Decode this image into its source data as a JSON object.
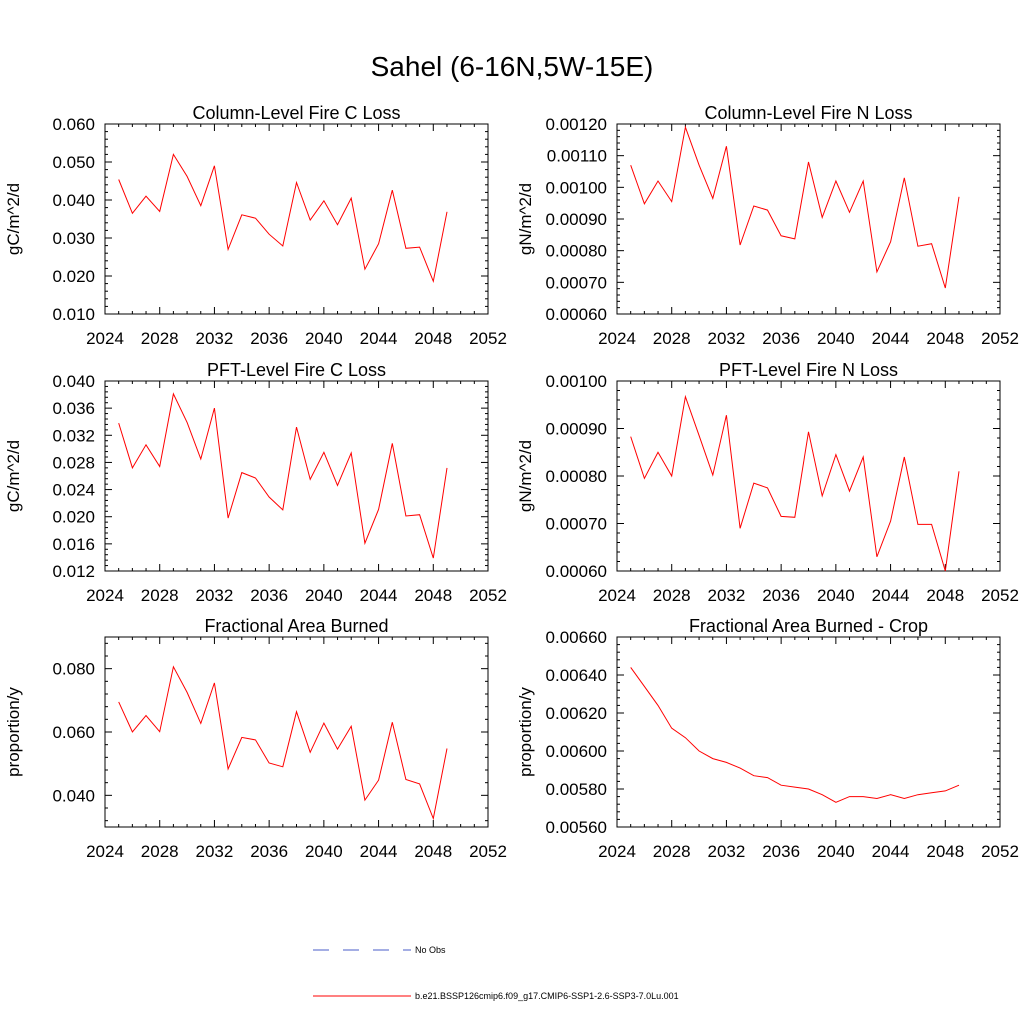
{
  "page": {
    "title": "Sahel (6-16N,5W-15E)"
  },
  "legend": {
    "obs_label": "No Obs",
    "model_label": "b.e21.BSSP126cmip6.f09_g17.CMIP6-SSP1-2.6-SSP3-7.0Lu.001",
    "model_color": "#ff0000",
    "obs_color": "#4a5cc8",
    "obs_dash": "dashed"
  },
  "chart_data": [
    {
      "type": "line",
      "title": "Column-Level Fire C Loss",
      "ylabel": "gC/m^2/d",
      "xlabel": "",
      "xlim": [
        2024,
        2052
      ],
      "ylim": [
        0.01,
        0.06
      ],
      "xticks": [
        "2024",
        "2028",
        "2032",
        "2036",
        "2040",
        "2044",
        "2048",
        "2052"
      ],
      "yticks": [
        "0.010",
        "0.020",
        "0.030",
        "0.040",
        "0.050",
        "0.060"
      ],
      "grid": false,
      "x": [
        2025,
        2026,
        2027,
        2028,
        2029,
        2030,
        2031,
        2032,
        2033,
        2034,
        2035,
        2036,
        2037,
        2038,
        2039,
        2040,
        2041,
        2042,
        2043,
        2044,
        2045,
        2046,
        2047,
        2048,
        2049
      ],
      "series": [
        {
          "color": "#ff0000",
          "values": [
            0.0454,
            0.0365,
            0.041,
            0.037,
            0.052,
            0.0462,
            0.0385,
            0.049,
            0.027,
            0.0361,
            0.0352,
            0.031,
            0.0279,
            0.0446,
            0.0347,
            0.0398,
            0.0335,
            0.0405,
            0.0218,
            0.0285,
            0.0426,
            0.0273,
            0.0276,
            0.0186,
            0.0369
          ]
        }
      ]
    },
    {
      "type": "line",
      "title": "Column-Level Fire N Loss",
      "ylabel": "gN/m^2/d",
      "xlabel": "",
      "xlim": [
        2024,
        2052
      ],
      "ylim": [
        0.0006,
        0.0012
      ],
      "xticks": [
        "2024",
        "2028",
        "2032",
        "2036",
        "2040",
        "2044",
        "2048",
        "2052"
      ],
      "yticks": [
        "0.00060",
        "0.00070",
        "0.00080",
        "0.00090",
        "0.00100",
        "0.00110",
        "0.00120"
      ],
      "grid": false,
      "x": [
        2025,
        2026,
        2027,
        2028,
        2029,
        2030,
        2031,
        2032,
        2033,
        2034,
        2035,
        2036,
        2037,
        2038,
        2039,
        2040,
        2041,
        2042,
        2043,
        2044,
        2045,
        2046,
        2047,
        2048,
        2049
      ],
      "series": [
        {
          "color": "#ff0000",
          "values": [
            0.00107,
            0.000948,
            0.00102,
            0.000955,
            0.00119,
            0.00107,
            0.000965,
            0.00113,
            0.000818,
            0.000941,
            0.000928,
            0.000847,
            0.000837,
            0.00108,
            0.000905,
            0.00102,
            0.000921,
            0.00102,
            0.000733,
            0.000828,
            0.00103,
            0.000814,
            0.000822,
            0.000682,
            0.00097
          ]
        }
      ]
    },
    {
      "type": "line",
      "title": "PFT-Level Fire C Loss",
      "ylabel": "gC/m^2/d",
      "xlabel": "",
      "xlim": [
        2024,
        2052
      ],
      "ylim": [
        0.012,
        0.04
      ],
      "xticks": [
        "2024",
        "2028",
        "2032",
        "2036",
        "2040",
        "2044",
        "2048",
        "2052"
      ],
      "yticks": [
        "0.012",
        "0.016",
        "0.020",
        "0.024",
        "0.028",
        "0.032",
        "0.036",
        "0.040"
      ],
      "grid": false,
      "x": [
        2025,
        2026,
        2027,
        2028,
        2029,
        2030,
        2031,
        2032,
        2033,
        2034,
        2035,
        2036,
        2037,
        2038,
        2039,
        2040,
        2041,
        2042,
        2043,
        2044,
        2045,
        2046,
        2047,
        2048,
        2049
      ],
      "series": [
        {
          "color": "#ff0000",
          "values": [
            0.0338,
            0.0272,
            0.0306,
            0.0274,
            0.0381,
            0.0339,
            0.0285,
            0.036,
            0.0198,
            0.0265,
            0.0257,
            0.0229,
            0.021,
            0.0332,
            0.0255,
            0.0295,
            0.0246,
            0.0294,
            0.0161,
            0.0211,
            0.0308,
            0.0201,
            0.0203,
            0.0139,
            0.0272
          ]
        }
      ]
    },
    {
      "type": "line",
      "title": "PFT-Level Fire N Loss",
      "ylabel": "gN/m^2/d",
      "xlabel": "",
      "xlim": [
        2024,
        2052
      ],
      "ylim": [
        0.0006,
        0.001
      ],
      "xticks": [
        "2024",
        "2028",
        "2032",
        "2036",
        "2040",
        "2044",
        "2048",
        "2052"
      ],
      "yticks": [
        "0.00060",
        "0.00070",
        "0.00080",
        "0.00090",
        "0.00100"
      ],
      "grid": false,
      "x": [
        2025,
        2026,
        2027,
        2028,
        2029,
        2030,
        2031,
        2032,
        2033,
        2034,
        2035,
        2036,
        2037,
        2038,
        2039,
        2040,
        2041,
        2042,
        2043,
        2044,
        2045,
        2046,
        2047,
        2048,
        2049
      ],
      "series": [
        {
          "color": "#ff0000",
          "values": [
            0.000883,
            0.000795,
            0.00085,
            0.0008,
            0.000967,
            0.000885,
            0.000802,
            0.000928,
            0.00069,
            0.000785,
            0.000775,
            0.000715,
            0.000713,
            0.000893,
            0.000758,
            0.000845,
            0.000768,
            0.00084,
            0.00063,
            0.000705,
            0.00084,
            0.000698,
            0.000698,
            0.0006,
            0.00081
          ]
        }
      ]
    },
    {
      "type": "line",
      "title": "Fractional Area Burned",
      "ylabel": "proportion/y",
      "xlabel": "",
      "xlim": [
        2024,
        2052
      ],
      "ylim": [
        0.03,
        0.09
      ],
      "xticks": [
        "2024",
        "2028",
        "2032",
        "2036",
        "2040",
        "2044",
        "2048",
        "2052"
      ],
      "yticks": [
        "0.040",
        "0.060",
        "0.080"
      ],
      "grid": false,
      "x": [
        2025,
        2026,
        2027,
        2028,
        2029,
        2030,
        2031,
        2032,
        2033,
        2034,
        2035,
        2036,
        2037,
        2038,
        2039,
        2040,
        2041,
        2042,
        2043,
        2044,
        2045,
        2046,
        2047,
        2048,
        2049
      ],
      "series": [
        {
          "color": "#ff0000",
          "values": [
            0.0695,
            0.06,
            0.0652,
            0.0601,
            0.0806,
            0.0725,
            0.0627,
            0.0755,
            0.0483,
            0.0583,
            0.0575,
            0.0502,
            0.049,
            0.0664,
            0.0536,
            0.0628,
            0.0546,
            0.0618,
            0.0385,
            0.0448,
            0.0631,
            0.045,
            0.0436,
            0.0327,
            0.0548
          ]
        }
      ]
    },
    {
      "type": "line",
      "title": "Fractional Area Burned - Crop",
      "ylabel": "proportion/y",
      "xlabel": "",
      "xlim": [
        2024,
        2052
      ],
      "ylim": [
        0.0056,
        0.0066
      ],
      "xticks": [
        "2024",
        "2028",
        "2032",
        "2036",
        "2040",
        "2044",
        "2048",
        "2052"
      ],
      "yticks": [
        "0.00560",
        "0.00580",
        "0.00600",
        "0.00620",
        "0.00640",
        "0.00660"
      ],
      "grid": false,
      "x": [
        2025,
        2026,
        2027,
        2028,
        2029,
        2030,
        2031,
        2032,
        2033,
        2034,
        2035,
        2036,
        2037,
        2038,
        2039,
        2040,
        2041,
        2042,
        2043,
        2044,
        2045,
        2046,
        2047,
        2048,
        2049
      ],
      "series": [
        {
          "color": "#ff0000",
          "values": [
            0.00644,
            0.00634,
            0.00624,
            0.00612,
            0.00607,
            0.006,
            0.00596,
            0.00594,
            0.00591,
            0.00587,
            0.00586,
            0.00582,
            0.00581,
            0.0058,
            0.00577,
            0.00573,
            0.00576,
            0.00576,
            0.00575,
            0.00577,
            0.00575,
            0.00577,
            0.00578,
            0.00579,
            0.00582
          ]
        }
      ]
    }
  ]
}
